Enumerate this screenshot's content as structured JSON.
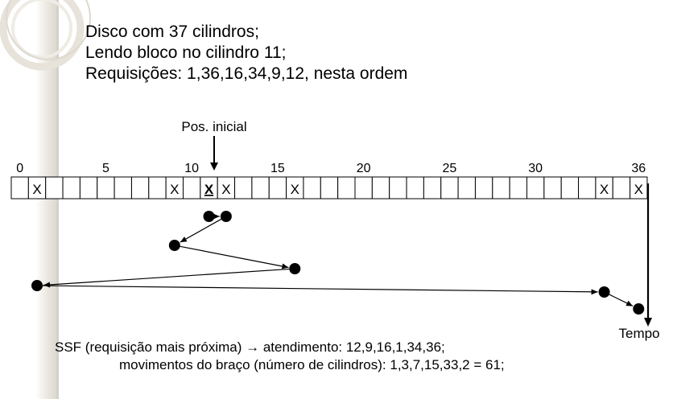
{
  "intro": {
    "line1": "Disco com 37 cilindros;",
    "line2": "Lendo bloco no cilindro 11;",
    "line3": "Requisições: 1,36,16,34,9,12, nesta ordem"
  },
  "diagram": {
    "start_label": "Pos. inicial",
    "time_label": "Tempo",
    "cylinder_count": 37,
    "start_cylinder": 11,
    "requested_cylinders": [
      1,
      9,
      12,
      16,
      34,
      36
    ],
    "mark_symbol": "X",
    "tick_labels": [
      {
        "cyl": 0,
        "text": "0"
      },
      {
        "cyl": 5,
        "text": "5"
      },
      {
        "cyl": 10,
        "text": "10"
      },
      {
        "cyl": 15,
        "text": "15"
      },
      {
        "cyl": 20,
        "text": "20"
      },
      {
        "cyl": 25,
        "text": "25"
      },
      {
        "cyl": 30,
        "text": "30"
      },
      {
        "cyl": 36,
        "text": "36"
      }
    ],
    "service_sequence": [
      11,
      12,
      9,
      16,
      1,
      34,
      36
    ]
  },
  "footer": {
    "line1": "SSF (requisição mais próxima) → atendimento: 12,9,16,1,34,36;",
    "line2": "movimentos do braço (número de cilindros): 1,3,7,15,33,2 = 61;"
  }
}
